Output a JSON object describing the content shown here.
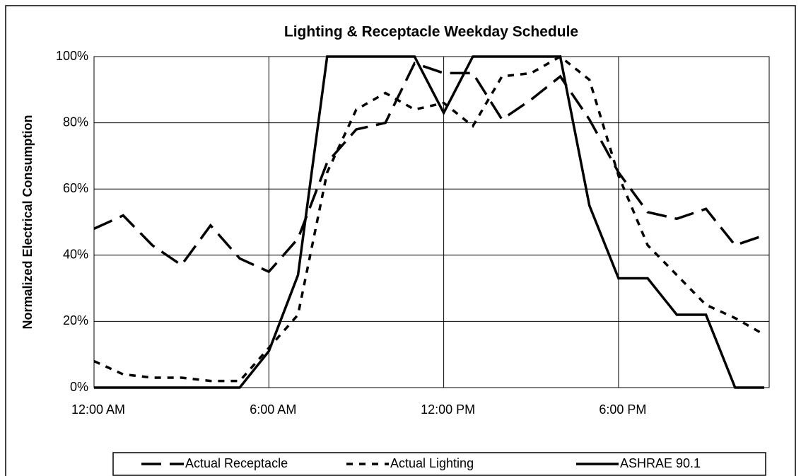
{
  "chart_data": {
    "type": "line",
    "title": "Lighting & Receptacle Weekday Schedule",
    "y_label": "Normalized Electrical Consumption",
    "x": [
      0,
      1,
      2,
      3,
      4,
      5,
      6,
      7,
      8,
      9,
      10,
      11,
      12,
      13,
      14,
      15,
      16,
      17,
      18,
      19,
      20,
      21,
      22,
      23
    ],
    "xlim": [
      0,
      23
    ],
    "xticks": [
      {
        "value": 0,
        "label": "12:00 AM"
      },
      {
        "value": 6,
        "label": "6:00 AM"
      },
      {
        "value": 12,
        "label": "12:00 PM"
      },
      {
        "value": 18,
        "label": "6:00 PM"
      }
    ],
    "ylim": [
      0,
      100
    ],
    "yticks": [
      {
        "value": 0,
        "label": "0%"
      },
      {
        "value": 20,
        "label": "20%"
      },
      {
        "value": 40,
        "label": "40%"
      },
      {
        "value": 60,
        "label": "60%"
      },
      {
        "value": 80,
        "label": "80%"
      },
      {
        "value": 100,
        "label": "100%"
      }
    ],
    "grid": true,
    "legend": "bottom",
    "series": [
      {
        "name": "Actual Receptacle",
        "color": "#000000",
        "dash": "long",
        "values": [
          48,
          52,
          43,
          37,
          49,
          39,
          35,
          45,
          68,
          78,
          80,
          98,
          95,
          95,
          81,
          87,
          94,
          81,
          65,
          53,
          51,
          54,
          43,
          46
        ]
      },
      {
        "name": "Actual Lighting",
        "color": "#000000",
        "dash": "short",
        "values": [
          8,
          4,
          3,
          3,
          2,
          2,
          12,
          22,
          65,
          84,
          89,
          84,
          86,
          79,
          94,
          95,
          100,
          93,
          64,
          43,
          34,
          25,
          21,
          16
        ]
      },
      {
        "name": "ASHRAE 90.1",
        "color": "#000000",
        "dash": "solid",
        "values": [
          0,
          0,
          0,
          0,
          0,
          0,
          11,
          34,
          100,
          100,
          100,
          100,
          83,
          100,
          100,
          100,
          100,
          55,
          33,
          33,
          22,
          22,
          0,
          0
        ]
      }
    ]
  }
}
